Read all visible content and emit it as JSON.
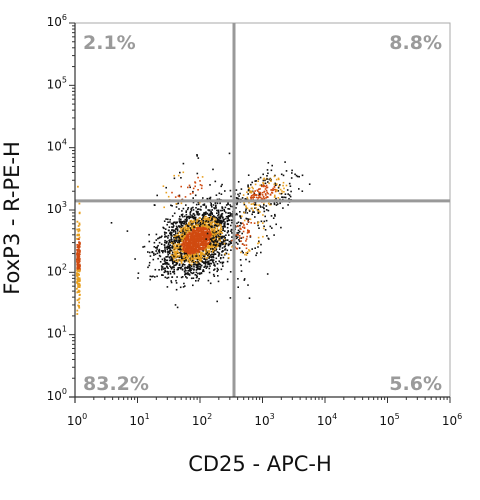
{
  "chart_data": {
    "type": "scatter",
    "xlabel": "CD25 - APC-H",
    "ylabel": "FoxP3 - R-PE-H",
    "x_scale": "log",
    "y_scale": "log",
    "xlim": [
      1,
      1000000
    ],
    "ylim": [
      1,
      1000000
    ],
    "x_ticks": [
      {
        "base": "10",
        "exp": "0"
      },
      {
        "base": "10",
        "exp": "1"
      },
      {
        "base": "10",
        "exp": "2"
      },
      {
        "base": "10",
        "exp": "3"
      },
      {
        "base": "10",
        "exp": "4"
      },
      {
        "base": "10",
        "exp": "5"
      },
      {
        "base": "10",
        "exp": "6"
      }
    ],
    "y_ticks": [
      {
        "base": "10",
        "exp": "0"
      },
      {
        "base": "10",
        "exp": "1"
      },
      {
        "base": "10",
        "exp": "2"
      },
      {
        "base": "10",
        "exp": "3"
      },
      {
        "base": "10",
        "exp": "4"
      },
      {
        "base": "10",
        "exp": "5"
      },
      {
        "base": "10",
        "exp": "6"
      }
    ],
    "gate_x": 350,
    "gate_y": 1400,
    "quadrants": [
      {
        "position": "top-left",
        "label": "2.1%"
      },
      {
        "position": "top-right",
        "label": "8.8%"
      },
      {
        "position": "bottom-left",
        "label": "83.2%"
      },
      {
        "position": "bottom-right",
        "label": "5.6%"
      }
    ],
    "populations": [
      {
        "center_x": 85,
        "center_y": 330,
        "share": 0.832
      },
      {
        "center_x": 1000,
        "center_y": 1900,
        "share": 0.088
      },
      {
        "center_x": 500,
        "center_y": 400,
        "share": 0.056
      },
      {
        "center_x": 60,
        "center_y": 2200,
        "share": 0.021
      }
    ],
    "grid": false,
    "colors": {
      "dots_sparse": "#111111",
      "dots_medium": "#e8a020",
      "dots_dense": "#d04a10",
      "gate_lines": "#999999",
      "quadrant_labels": "#9a9a9a",
      "axis": "#333333"
    }
  }
}
